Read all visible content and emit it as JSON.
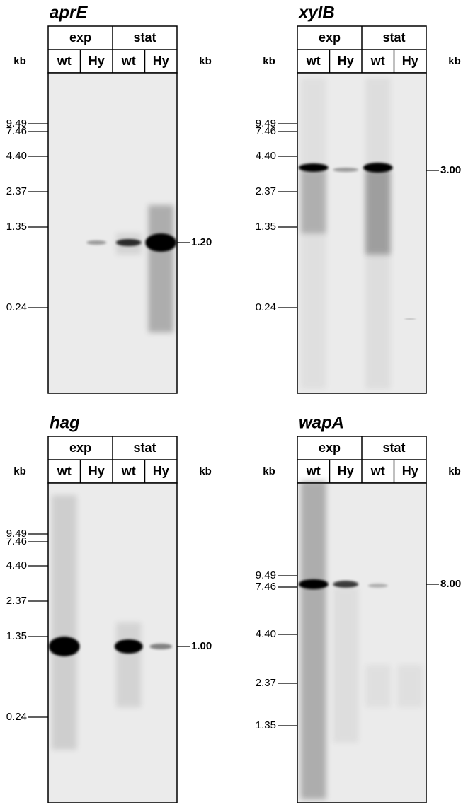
{
  "panels": [
    {
      "gene": "aprE",
      "conditions": [
        "exp",
        "stat"
      ],
      "lanes": [
        "wt",
        "Hy",
        "wt",
        "Hy"
      ],
      "unit_left": "kb",
      "unit_right": "kb",
      "markers": [
        "9.49",
        "7.46",
        "4.40",
        "2.37",
        "1.35",
        "0.24"
      ],
      "band_size": "1.20"
    },
    {
      "gene": "xylB",
      "conditions": [
        "exp",
        "stat"
      ],
      "lanes": [
        "wt",
        "Hy",
        "wt",
        "Hy"
      ],
      "unit_left": "kb",
      "unit_right": "kb",
      "markers": [
        "9.49",
        "7.46",
        "4.40",
        "2.37",
        "1.35",
        "0.24"
      ],
      "band_size": "3.00"
    },
    {
      "gene": "hag",
      "conditions": [
        "exp",
        "stat"
      ],
      "lanes": [
        "wt",
        "Hy",
        "wt",
        "Hy"
      ],
      "unit_left": "kb",
      "unit_right": "kb",
      "markers": [
        "9.49",
        "7.46",
        "4.40",
        "2.37",
        "1.35",
        "0.24"
      ],
      "band_size": "1.00"
    },
    {
      "gene": "wapA",
      "conditions": [
        "exp",
        "stat"
      ],
      "lanes": [
        "wt",
        "Hy",
        "wt",
        "Hy"
      ],
      "unit_left": "kb",
      "unit_right": "kb",
      "markers": [
        "9.49",
        "7.46",
        "4.40",
        "2.37",
        "1.35"
      ],
      "band_size": "8.00"
    }
  ]
}
